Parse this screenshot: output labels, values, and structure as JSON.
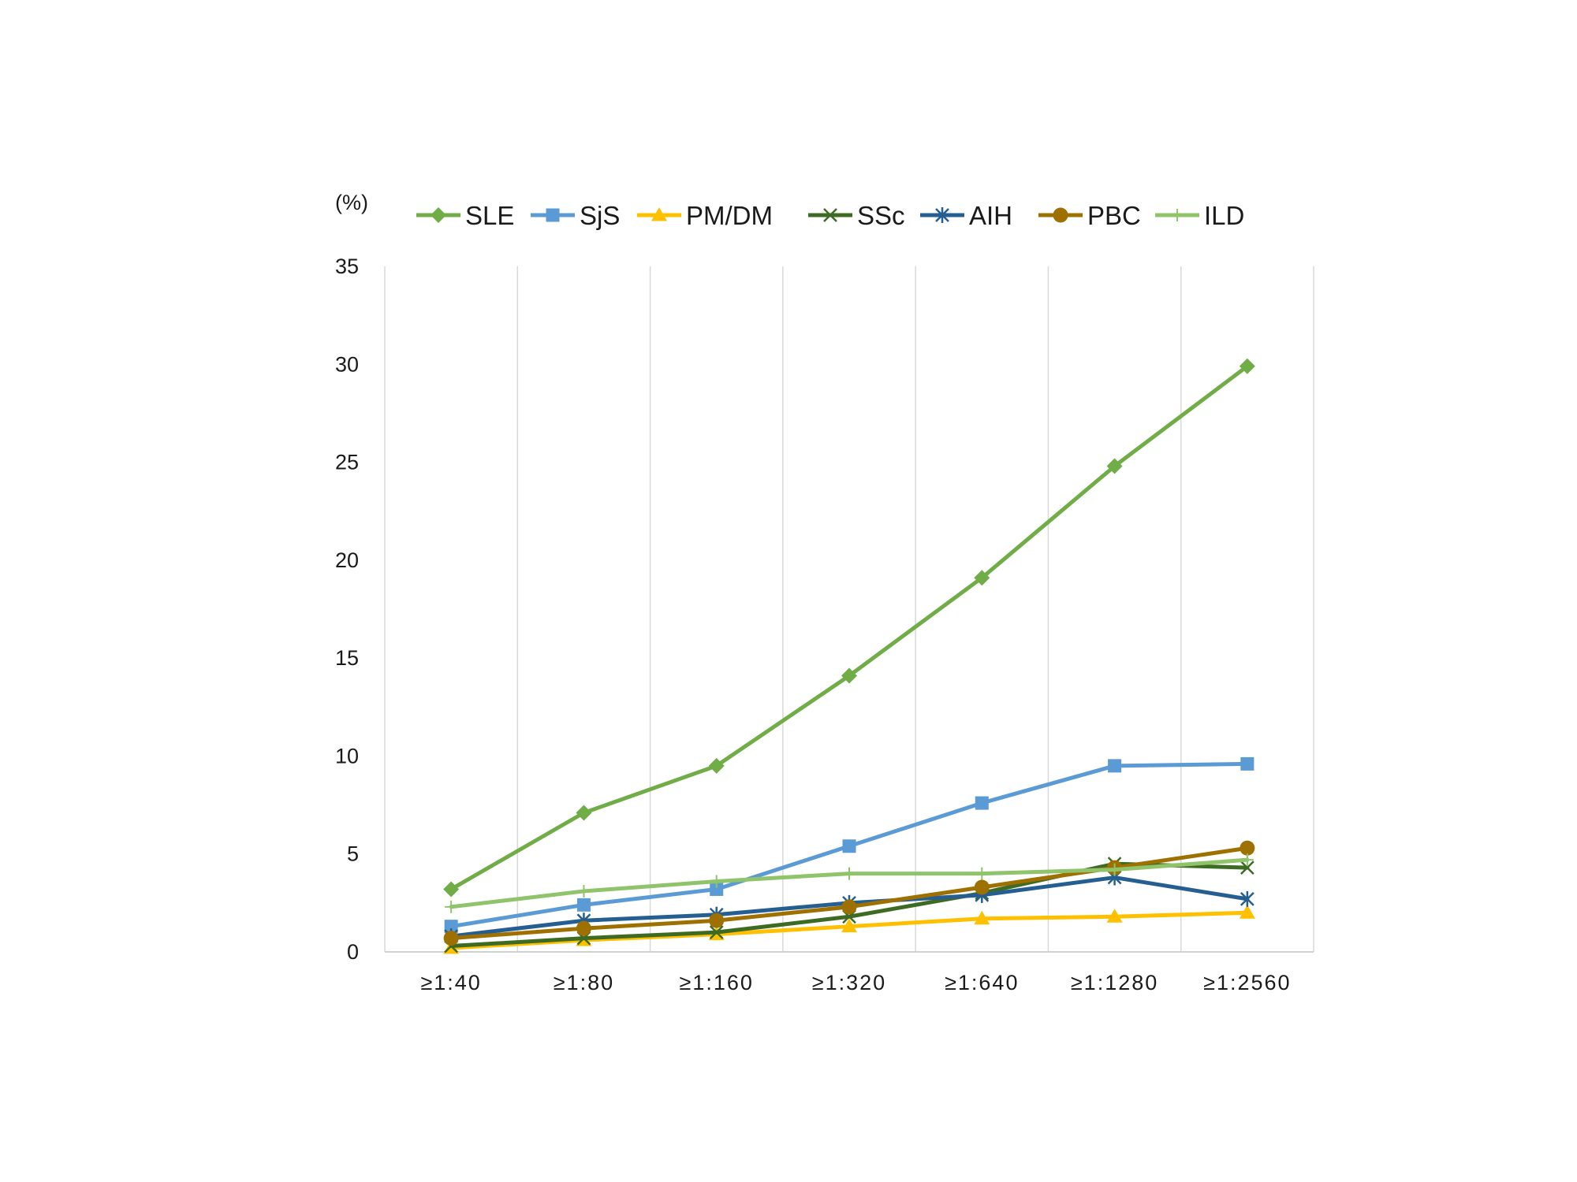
{
  "chart_data": {
    "type": "line",
    "title": "",
    "xlabel": "",
    "ylabel": "(%)",
    "categories": [
      "≥1:40",
      "≥1:80",
      "≥1:160",
      "≥1:320",
      "≥1:640",
      "≥1:1280",
      "≥1:2560"
    ],
    "ylim": [
      0,
      35
    ],
    "yticks": [
      0,
      5,
      10,
      15,
      20,
      25,
      30,
      35
    ],
    "grid": "vertical",
    "legend": "top",
    "series": [
      {
        "name": "SLE",
        "color": "#70AD47",
        "marker": "diamond",
        "values": [
          3.2,
          7.1,
          9.5,
          14.1,
          19.1,
          24.8,
          29.9
        ]
      },
      {
        "name": "SjS",
        "color": "#5B9BD5",
        "marker": "square",
        "values": [
          1.3,
          2.4,
          3.2,
          5.4,
          7.6,
          9.5,
          9.6
        ]
      },
      {
        "name": "PM/DM",
        "color": "#FFC000",
        "marker": "triangle",
        "values": [
          0.2,
          0.6,
          0.9,
          1.3,
          1.7,
          1.8,
          2.0
        ]
      },
      {
        "name": "SSc",
        "color": "#3D6B23",
        "marker": "x",
        "values": [
          0.3,
          0.7,
          1.0,
          1.8,
          3.0,
          4.5,
          4.3
        ]
      },
      {
        "name": "AIH",
        "color": "#255E91",
        "marker": "star",
        "values": [
          0.8,
          1.6,
          1.9,
          2.5,
          2.9,
          3.8,
          2.7
        ]
      },
      {
        "name": "PBC",
        "color": "#9E7000",
        "marker": "circle",
        "values": [
          0.7,
          1.2,
          1.6,
          2.3,
          3.3,
          4.3,
          5.3
        ]
      },
      {
        "name": "ILD",
        "color": "#8FC46A",
        "marker": "plus",
        "values": [
          2.3,
          3.1,
          3.6,
          4.0,
          4.0,
          4.2,
          4.7
        ]
      }
    ]
  }
}
